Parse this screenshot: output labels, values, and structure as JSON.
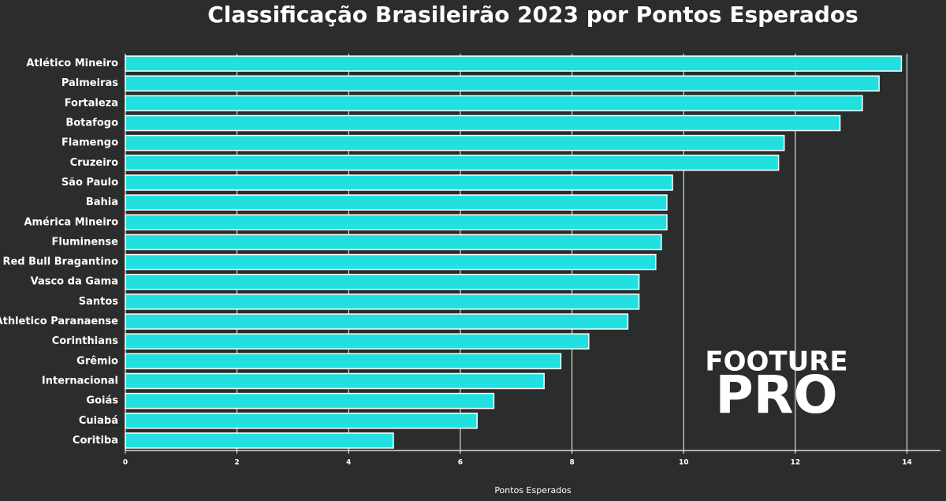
{
  "chart_data": {
    "type": "barh",
    "title": "Classificação Brasileirão 2023 por Pontos Esperados",
    "xlabel": "Pontos Esperados",
    "categories": [
      "Atlético Mineiro",
      "Palmeiras",
      "Fortaleza",
      "Botafogo",
      "Flamengo",
      "Cruzeiro",
      "São Paulo",
      "Bahia",
      "América Mineiro",
      "Fluminense",
      "Red Bull Bragantino",
      "Vasco da Gama",
      "Santos",
      "Athletico Paranaense",
      "Corinthians",
      "Grêmio",
      "Internacional",
      "Goiás",
      "Cuiabá",
      "Coritiba"
    ],
    "values": [
      13.9,
      13.5,
      13.2,
      12.8,
      11.8,
      11.7,
      9.8,
      9.7,
      9.7,
      9.6,
      9.5,
      9.2,
      9.2,
      9.0,
      8.3,
      7.8,
      7.5,
      6.6,
      6.3,
      4.8
    ],
    "color": "#22e0e0",
    "xlim": [
      0,
      14.6
    ],
    "xticks": [
      0,
      2,
      4,
      6,
      8,
      10,
      12,
      14
    ],
    "grid": true,
    "watermark": [
      "FOOTURE",
      "PRO"
    ]
  }
}
